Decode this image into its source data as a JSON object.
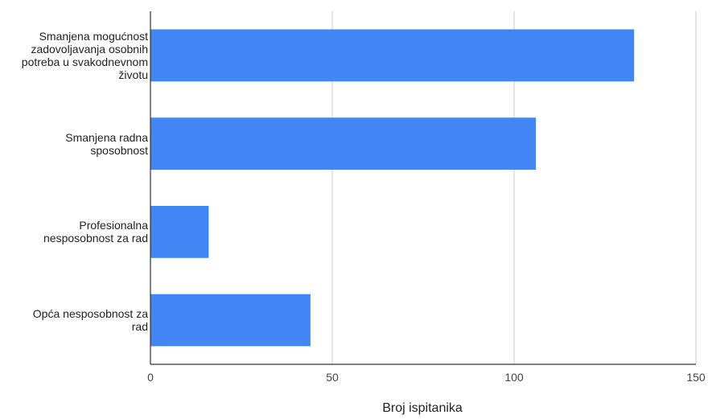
{
  "chart_data": {
    "type": "bar",
    "orientation": "horizontal",
    "categories": [
      "Smanjena mogućnost zadovoljavanja osobnih potreba u svakodnevnom životu",
      "Smanjena radna sposobnost",
      "Profesionalna nesposobnost za rad",
      "Opća nesposobnost za rad"
    ],
    "category_lines": [
      [
        "Smanjena mogućnost",
        "zadovoljavanja osobnih",
        "potreba u svakodnevnom",
        "životu"
      ],
      [
        "Smanjena radna",
        "sposobnost"
      ],
      [
        "Profesionalna",
        "nesposobnost za rad"
      ],
      [
        "Opća nesposobnost za",
        "rad"
      ]
    ],
    "values": [
      133,
      106,
      16,
      44
    ],
    "xlabel": "Broj ispitanika",
    "ylabel": "",
    "xlim": [
      0,
      150
    ],
    "ticks": [
      "0",
      "50",
      "100",
      "150"
    ],
    "tick_values": [
      0,
      50,
      100,
      150
    ],
    "grid": true,
    "legend": "none",
    "bar_color": "#4285f4"
  }
}
